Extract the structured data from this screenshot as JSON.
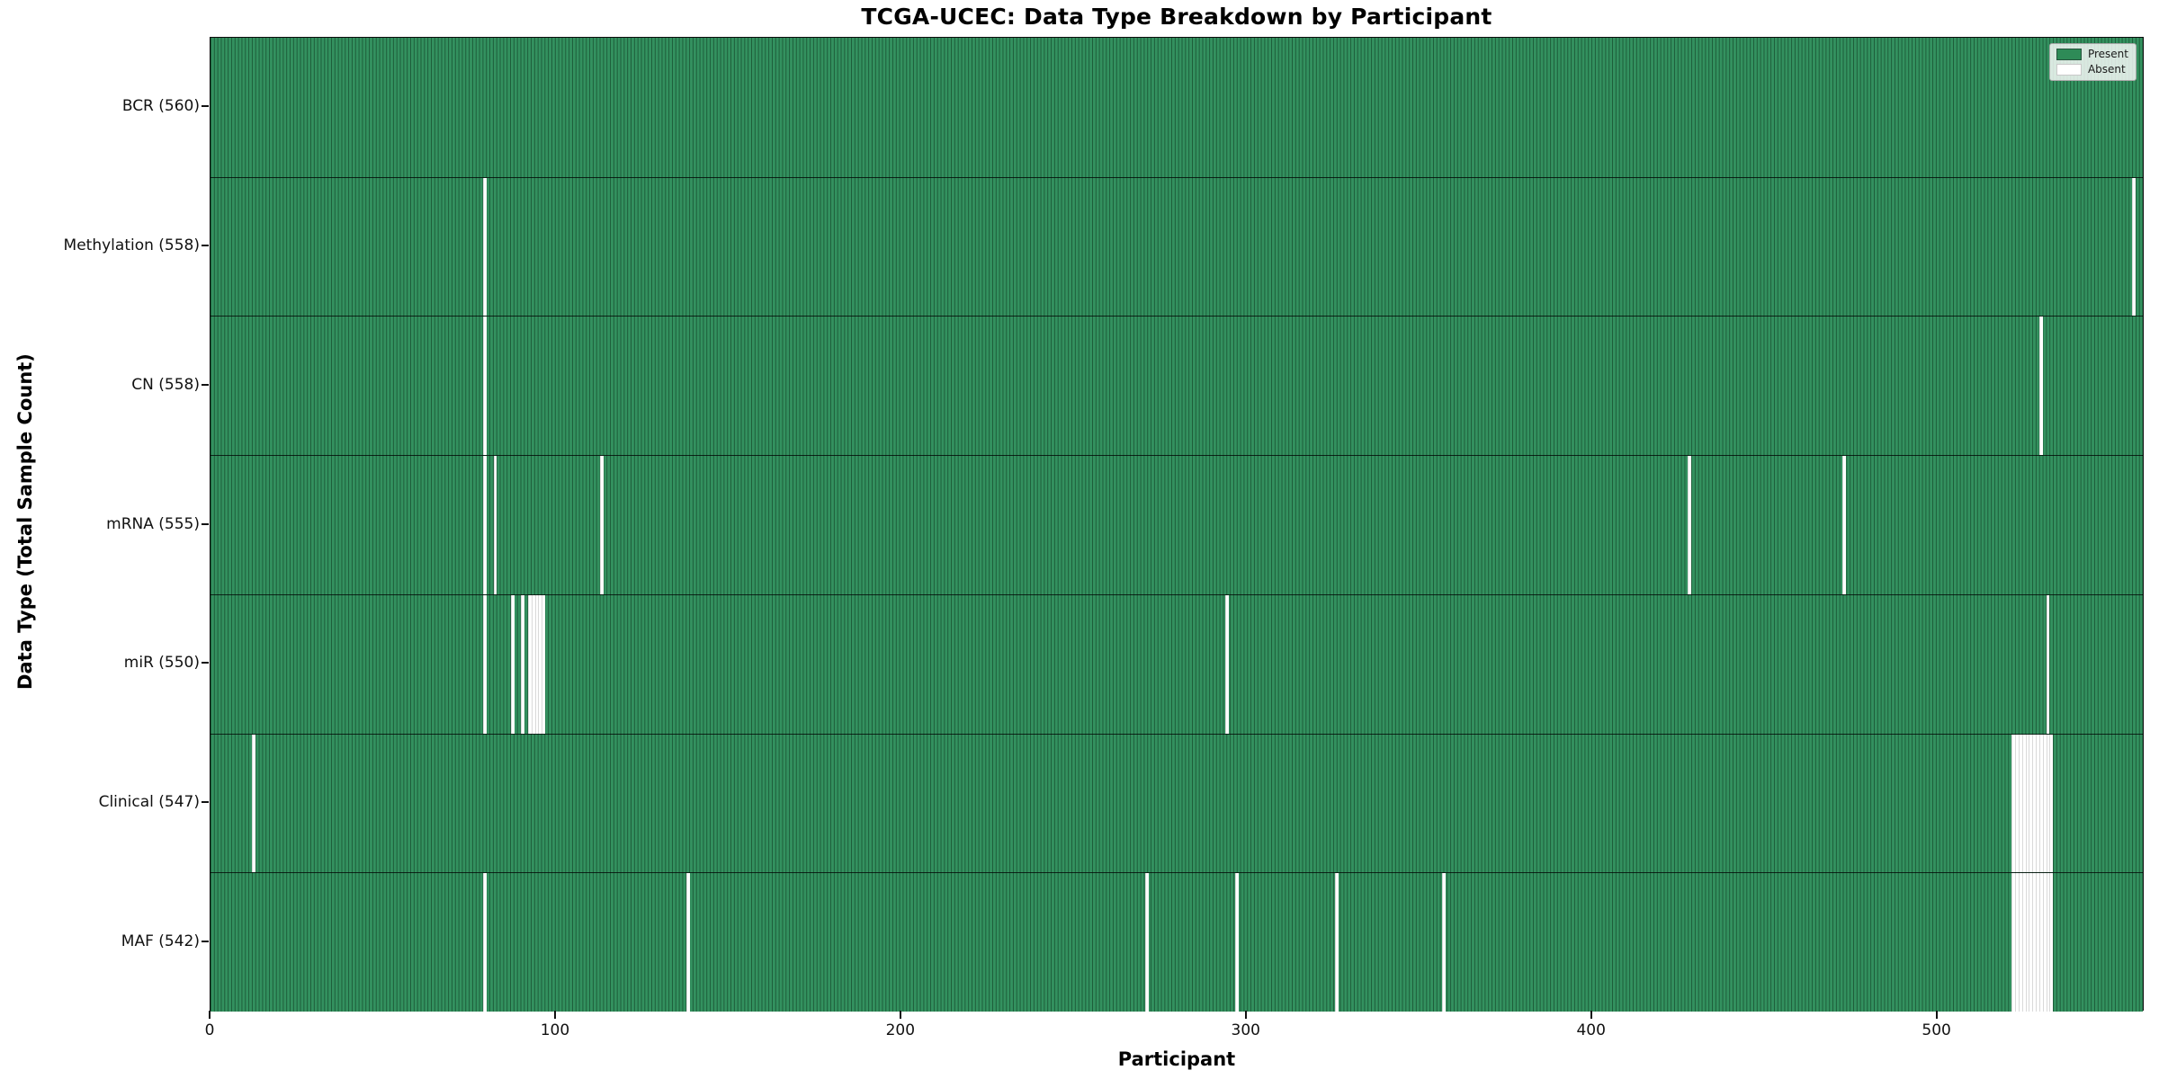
{
  "title": "TCGA-UCEC: Data Type Breakdown by Participant",
  "xlabel": "Participant",
  "ylabel": "Data Type (Total Sample Count)",
  "legend": {
    "present_label": "Present",
    "absent_label": "Absent"
  },
  "colors": {
    "present_fill": "#33915f",
    "present_legend": "#2e8b57",
    "bar_edge": "#1d5c39",
    "absent_fill": "#ffffff",
    "spine": "#0c0c0c"
  },
  "chart_data": {
    "type": "heatmap",
    "title": "TCGA-UCEC: Data Type Breakdown by Participant",
    "xlabel": "Participant",
    "ylabel": "Data Type (Total Sample Count)",
    "legend_entries": [
      "Present",
      "Absent"
    ],
    "legend_position": "upper right",
    "total_participants": 560,
    "x_ticks": [
      0,
      100,
      200,
      300,
      400,
      500
    ],
    "xlim": [
      0,
      560
    ],
    "grid": false,
    "rows": [
      {
        "label": "BCR (560)",
        "data_type": "BCR",
        "present_count": 560,
        "absent_participants": []
      },
      {
        "label": "Methylation (558)",
        "data_type": "Methylation",
        "present_count": 558,
        "absent_participants": [
          79,
          557
        ]
      },
      {
        "label": "CN (558)",
        "data_type": "CN",
        "present_count": 558,
        "absent_participants": [
          79,
          530
        ]
      },
      {
        "label": "mRNA (555)",
        "data_type": "mRNA",
        "present_count": 555,
        "absent_participants": [
          79,
          82,
          113,
          428,
          473
        ]
      },
      {
        "label": "miR (550)",
        "data_type": "miR",
        "present_count": 550,
        "absent_participants": [
          79,
          87,
          90,
          92,
          93,
          94,
          95,
          96,
          294,
          532
        ]
      },
      {
        "label": "Clinical (547)",
        "data_type": "Clinical",
        "present_count": 547,
        "absent_participants": [
          12,
          522,
          523,
          524,
          525,
          526,
          527,
          528,
          529,
          530,
          531,
          532,
          533
        ]
      },
      {
        "label": "MAF (542)",
        "data_type": "MAF",
        "present_count": 542,
        "absent_participants": [
          79,
          138,
          271,
          297,
          326,
          357,
          522,
          523,
          524,
          525,
          526,
          527,
          528,
          529,
          530,
          531,
          532,
          533
        ]
      }
    ]
  }
}
